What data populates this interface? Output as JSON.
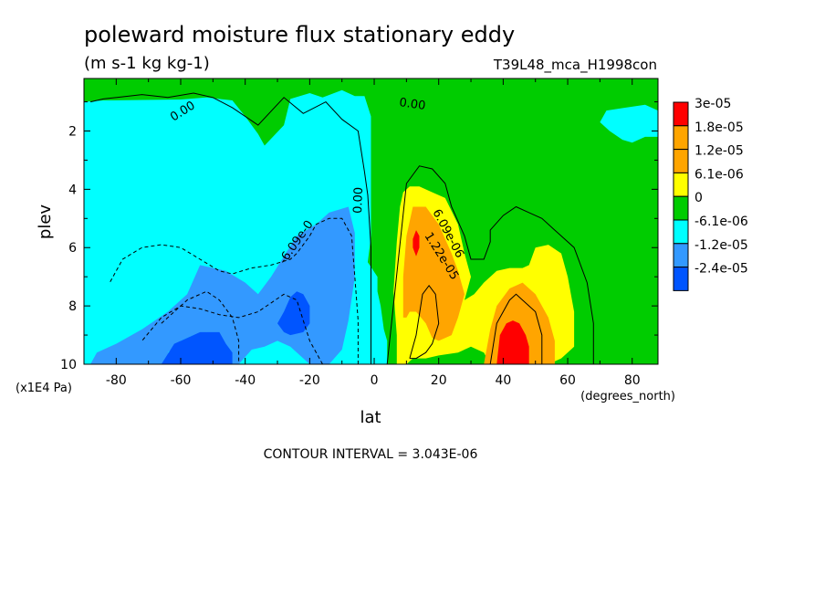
{
  "chart_data": {
    "type": "heatmap",
    "title": "poleward moisture flux stationary eddy",
    "subtitle": "(m s-1 kg kg-1)",
    "dataset_label": "T39L48_mca_H1998con",
    "xlabel": "lat",
    "x_units": "(degrees_north)",
    "ylabel": "plev",
    "y_units": "(x1E4 Pa)",
    "xlim": [
      -90,
      88
    ],
    "ylim": [
      10,
      0.2
    ],
    "x_ticks": [
      "-80",
      "-60",
      "-40",
      "-20",
      "0",
      "20",
      "40",
      "60",
      "80"
    ],
    "y_ticks": [
      "2",
      "4",
      "6",
      "8",
      "10"
    ],
    "x_tick_values": [
      -80,
      -60,
      -40,
      -20,
      0,
      20,
      40,
      60,
      80
    ],
    "y_tick_values": [
      2,
      4,
      6,
      8,
      10
    ],
    "contour_interval": "CONTOUR INTERVAL = 3.043E-06",
    "contour_labels": [
      "0.00",
      "0.00",
      "0.00",
      "-6.09e-0",
      "6.09e-06",
      "1.22e-05"
    ],
    "colorbar": {
      "labels": [
        "3e-05",
        "1.8e-05",
        "1.2e-05",
        "6.1e-06",
        "0",
        "-6.1e-06",
        "-1.2e-05",
        "-2.4e-05"
      ],
      "colors": [
        "#ff0000",
        "#ffa500",
        "#ffa500",
        "#ffff00",
        "#00cc00",
        "#00ffff",
        "#3399ff",
        "#0055ff"
      ]
    },
    "color_levels": {
      "red": "#ff0000",
      "orange": "#ffa500",
      "yellow": "#ffff00",
      "green": "#00cc00",
      "cyan": "#00ffff",
      "light_blue": "#3399ff",
      "blue": "#0055ff"
    },
    "regions": [
      {
        "level": "cyan",
        "lat": [
          -90,
          -90,
          -84,
          -84,
          -84,
          -60,
          -52,
          -44,
          -40,
          -36,
          -34,
          -28,
          -26,
          -20,
          -16,
          -10,
          -6,
          -3,
          -1,
          -1,
          -1,
          -1,
          -2,
          1,
          1,
          2,
          3,
          4,
          4,
          1,
          -1,
          -90
        ],
        "plev": [
          9.8,
          1.0,
          0.95,
          0.9,
          0.95,
          0.92,
          0.85,
          0.95,
          1.5,
          2.1,
          2.5,
          1.8,
          0.9,
          0.7,
          0.85,
          0.6,
          0.8,
          0.8,
          1.5,
          2.8,
          4.2,
          5.6,
          6.5,
          7.0,
          7.5,
          8.0,
          8.8,
          9.2,
          10,
          10,
          10,
          10
        ]
      },
      {
        "level": "light_blue",
        "lat": [
          -88,
          -86,
          -80,
          -72,
          -64,
          -58,
          -54,
          -46,
          -40,
          -36,
          -32,
          -28,
          -24,
          -18,
          -14,
          -8,
          -6,
          -6,
          -8,
          -10,
          -14,
          -20,
          -26,
          -30,
          -34,
          -38,
          -42,
          -48,
          -54,
          -60,
          -66,
          -70,
          -72,
          -72,
          -70,
          -66,
          -60,
          -56,
          -52,
          -50,
          -50,
          -52,
          -56,
          -60,
          -64,
          -68,
          -70
        ],
        "plev": [
          10,
          9.6,
          9.3,
          8.8,
          8.2,
          7.6,
          6.6,
          6.8,
          7.2,
          7.6,
          7.0,
          6.3,
          5.6,
          5.2,
          4.8,
          4.6,
          5.5,
          7.0,
          8.5,
          9.5,
          10,
          10,
          9.4,
          9.2,
          9.4,
          9.5,
          10,
          10,
          10,
          10,
          10,
          10,
          10,
          9.8,
          9.6,
          9.6,
          9.6,
          9.4,
          9.2,
          9.1,
          9.0,
          8.9,
          9.0,
          9.2,
          9.6,
          10,
          10
        ]
      },
      {
        "level": "blue",
        "lat": [
          -66,
          -62,
          -54,
          -48,
          -46,
          -44,
          -44,
          -46,
          -50,
          -56,
          -62,
          -66
        ],
        "plev": [
          10,
          9.3,
          8.9,
          8.9,
          9.3,
          9.6,
          10,
          10,
          10,
          10,
          10,
          10
        ]
      },
      {
        "level": "blue",
        "lat": [
          -30,
          -28,
          -26,
          -24,
          -22,
          -20,
          -20,
          -22,
          -26,
          -28,
          -30
        ],
        "plev": [
          8.6,
          8.2,
          7.7,
          7.5,
          7.6,
          8.0,
          8.6,
          8.9,
          9.0,
          8.9,
          8.6
        ]
      },
      {
        "level": "cyan",
        "lat": [
          77,
          73,
          70,
          72,
          78,
          84,
          88,
          88,
          84,
          80
        ],
        "plev": [
          2.3,
          2.0,
          1.7,
          1.3,
          1.2,
          1.1,
          1.3,
          2.2,
          2.2,
          2.4
        ]
      },
      {
        "level": "cyan",
        "lat": [
          -45,
          -44,
          -43,
          -44
        ],
        "plev": [
          3.2,
          2.8,
          3.2,
          3.3
        ]
      },
      {
        "level": "yellow",
        "lat": [
          7,
          7,
          6,
          7,
          8,
          9,
          11,
          14,
          18,
          22,
          26,
          28,
          30,
          28,
          31,
          34,
          38,
          42,
          46,
          48,
          50,
          54,
          58,
          60,
          62,
          62,
          58,
          54,
          50,
          46,
          42,
          36,
          34,
          30,
          26,
          20,
          16,
          12,
          10,
          8
        ],
        "plev": [
          10,
          9.0,
          7.5,
          5.8,
          4.6,
          4.1,
          3.9,
          3.9,
          4.1,
          4.3,
          5.2,
          6.2,
          7.0,
          7.8,
          7.6,
          7.2,
          6.8,
          6.7,
          6.7,
          6.6,
          6.0,
          5.9,
          6.2,
          7.0,
          8.2,
          9.4,
          9.8,
          10,
          10,
          10,
          10,
          10,
          9.6,
          9.4,
          9.6,
          9.7,
          9.8,
          9.8,
          10,
          10
        ]
      },
      {
        "level": "orange",
        "lat": [
          9,
          9,
          10,
          12,
          16,
          18,
          20,
          22,
          24,
          26,
          28,
          26,
          24,
          20,
          18,
          16,
          13,
          11,
          10
        ],
        "plev": [
          8.4,
          7.0,
          5.6,
          4.6,
          4.6,
          4.9,
          5.2,
          5.7,
          6.2,
          6.8,
          7.6,
          8.4,
          9.0,
          9.2,
          9.1,
          8.6,
          8.2,
          8.2,
          8.4
        ]
      },
      {
        "level": "orange",
        "lat": [
          34,
          36,
          38,
          42,
          46,
          50,
          54,
          56,
          56,
          54,
          50,
          46,
          42,
          38,
          34
        ],
        "plev": [
          10,
          8.8,
          8.0,
          7.4,
          7.2,
          7.6,
          8.4,
          9.2,
          10,
          10,
          10,
          10,
          10,
          10,
          10
        ]
      },
      {
        "level": "red",
        "lat": [
          12,
          12,
          13,
          14,
          14,
          13
        ],
        "plev": [
          6.0,
          5.7,
          5.4,
          5.6,
          6.0,
          6.3
        ]
      },
      {
        "level": "red",
        "lat": [
          38,
          39,
          41,
          43,
          45,
          47,
          48,
          48,
          46,
          42,
          40,
          38
        ],
        "plev": [
          10,
          9.0,
          8.6,
          8.5,
          8.6,
          9.0,
          9.4,
          10,
          10,
          10,
          10,
          10
        ]
      }
    ],
    "contours": [
      {
        "lat": [
          -5,
          -5,
          -6,
          -7,
          -10,
          -14,
          -18,
          -20,
          -22,
          -24,
          -26,
          -32,
          -38,
          -44,
          -48,
          -54,
          -60,
          -66,
          -72,
          -78,
          -82
        ],
        "plev": [
          10,
          8.5,
          7.0,
          5.6,
          5.0,
          5.0,
          5.2,
          5.6,
          5.9,
          6.2,
          6.4,
          6.6,
          6.7,
          6.9,
          6.8,
          6.4,
          6.0,
          5.9,
          6.0,
          6.4,
          7.2
        ],
        "dashed": true
      },
      {
        "lat": [
          -16,
          -20,
          -24,
          -28,
          -32,
          -36,
          -42,
          -48,
          -54,
          -60,
          -66,
          -72
        ],
        "plev": [
          10,
          9.2,
          7.8,
          7.6,
          7.9,
          8.2,
          8.4,
          8.3,
          8.1,
          8.0,
          8.4,
          9.2
        ],
        "dashed": true
      },
      {
        "lat": [
          -66,
          -58,
          -52,
          -48,
          -44,
          -42,
          -42
        ],
        "plev": [
          8.6,
          7.8,
          7.5,
          7.8,
          8.4,
          9.2,
          10
        ],
        "dashed": true
      },
      {
        "lat": [
          4,
          10,
          14,
          18,
          22,
          24,
          28,
          30,
          34,
          36,
          36,
          40,
          44,
          48,
          52,
          56,
          62,
          66,
          68,
          68
        ],
        "plev": [
          10,
          3.8,
          3.2,
          3.3,
          3.8,
          4.6,
          5.6,
          6.4,
          6.4,
          5.8,
          5.4,
          4.9,
          4.6,
          4.8,
          5.0,
          5.4,
          6.0,
          7.2,
          8.6,
          10
        ],
        "dashed": false
      },
      {
        "lat": [
          11,
          13,
          15,
          17,
          19,
          20,
          18,
          16,
          13,
          11
        ],
        "plev": [
          9.8,
          9.0,
          7.6,
          7.3,
          7.6,
          8.6,
          9.3,
          9.6,
          9.8,
          9.8
        ],
        "dashed": false
      },
      {
        "lat": [
          36,
          38,
          42,
          44,
          46,
          50,
          52,
          52
        ],
        "plev": [
          10,
          8.6,
          7.8,
          7.6,
          7.8,
          8.2,
          9.0,
          10
        ],
        "dashed": false
      },
      {
        "lat": [
          -1,
          -1,
          -1,
          -2,
          -3,
          -5,
          -10,
          -15,
          -22,
          -28,
          -36,
          -44,
          -50,
          -56,
          -64,
          -72,
          -84,
          -88
        ],
        "plev": [
          10,
          8.0,
          6.0,
          4.2,
          3.4,
          2.0,
          1.6,
          1.0,
          1.4,
          0.85,
          1.8,
          1.2,
          0.85,
          0.7,
          0.85,
          0.75,
          0.9,
          1.0
        ],
        "dashed": false
      }
    ]
  }
}
